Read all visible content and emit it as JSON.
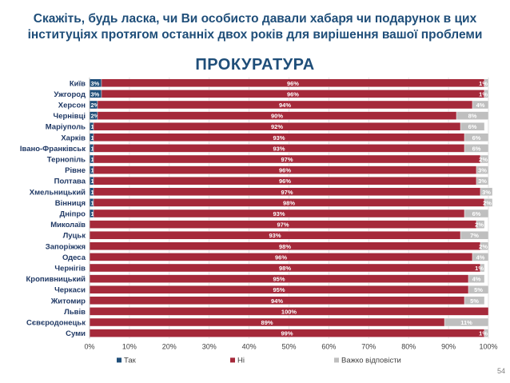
{
  "title_line1": "Скажіть, будь ласка, чи Ви особисто давали хабаря чи подарунок в цих",
  "title_line2": "інституціях протягом останніх двох років для вирішення вашої проблеми",
  "subtitle": "ПРОКУРАТУРА",
  "page_number": "54",
  "colors": {
    "tak": "#1f4e79",
    "ni": "#a5293a",
    "vazhko": "#bfbfbf"
  },
  "chart_data": {
    "type": "bar",
    "orientation": "horizontal",
    "stacked": true,
    "categories": [
      "Київ",
      "Ужгород",
      "Херсон",
      "Чернівці",
      "Маріуполь",
      "Харків",
      "Івано-Франківськ",
      "Тернопіль",
      "Рівне",
      "Полтава",
      "Хмельницький",
      "Вінниця",
      "Дніпро",
      "Миколаїв",
      "Луцьк",
      "Запоріжжя",
      "Одеса",
      "Чернігів",
      "Кропивницький",
      "Черкаси",
      "Житомир",
      "Львів",
      "Сєвєродонецьк",
      "Суми"
    ],
    "series": [
      {
        "name": "Так",
        "values": [
          3,
          3,
          2,
          2,
          1,
          1,
          1,
          1,
          1,
          1,
          1,
          1,
          1,
          0,
          0,
          0,
          0,
          0,
          0,
          0,
          0,
          0,
          0,
          0
        ],
        "labels": [
          "3%",
          "3%",
          "2%",
          "2%",
          "1%",
          "1%",
          "1%",
          "1%",
          "1%",
          "1%",
          "1%",
          "1%",
          "1%",
          "",
          "",
          "",
          "",
          "",
          "",
          "",
          "",
          "",
          "",
          ""
        ]
      },
      {
        "name": "Ні",
        "values": [
          96,
          96,
          94,
          90,
          92,
          93,
          93,
          97,
          96,
          96,
          97,
          98,
          93,
          97,
          93,
          98,
          96,
          98,
          95,
          95,
          94,
          100,
          89,
          99
        ],
        "labels": [
          "96%",
          "96%",
          "94%",
          "90%",
          "92%",
          "93%",
          "93%",
          "97%",
          "96%",
          "96%",
          "97%",
          "98%",
          "93%",
          "97%",
          "93%",
          "98%",
          "96%",
          "98%",
          "95%",
          "95%",
          "94%",
          "100%",
          "89%",
          "99%"
        ]
      },
      {
        "name": "Важко відповісти",
        "values": [
          1,
          1,
          4,
          8,
          6,
          6,
          6,
          2,
          3,
          3,
          3,
          2,
          6,
          2,
          7,
          2,
          4,
          1,
          4,
          5,
          5,
          0,
          11,
          1
        ],
        "labels": [
          "1%",
          "1%",
          "4%",
          "8%",
          "6%",
          "6%",
          "6%",
          "2%",
          "3%",
          "3%",
          "3%",
          "2%",
          "6%",
          "2%",
          "7%",
          "2%",
          "4%",
          "1%",
          "4%",
          "5%",
          "5%",
          "",
          "11%",
          "1%"
        ]
      }
    ],
    "x_ticks": [
      "0%",
      "10%",
      "20%",
      "30%",
      "40%",
      "50%",
      "60%",
      "70%",
      "80%",
      "90%",
      "100%"
    ],
    "xlim": [
      0,
      100
    ],
    "grid": true,
    "legend_position": "bottom"
  }
}
